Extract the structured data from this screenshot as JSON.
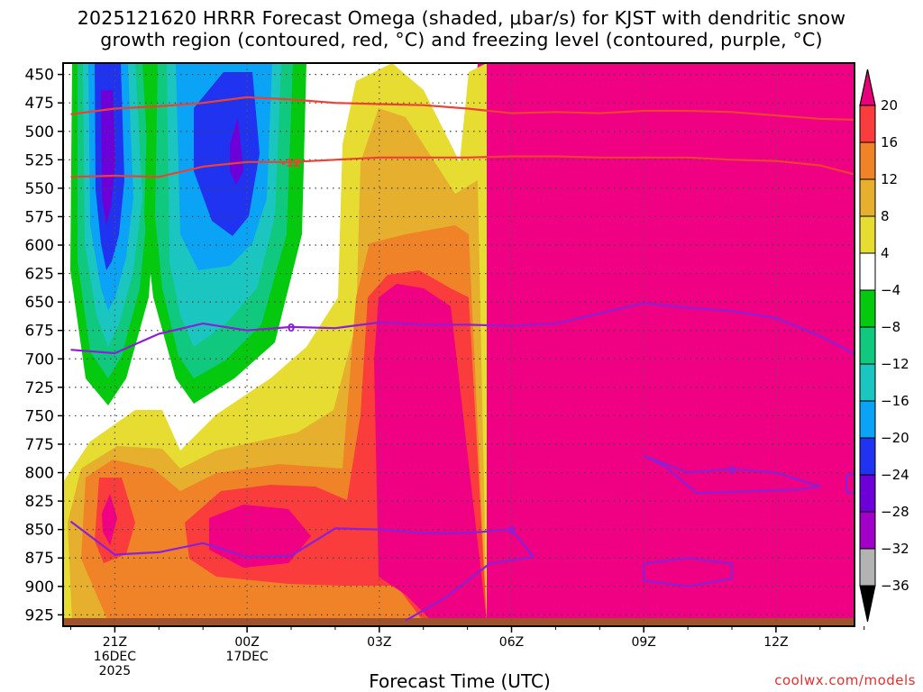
{
  "title": {
    "line1": "2025121620 HRRR Forecast Omega (shaded, μbar/s) for KJST with dendritic snow",
    "line2": "growth region (contoured, red, °C) and freezing level (contoured, purple, °C)"
  },
  "credit": "coolwx.com/models",
  "chart_data": {
    "type": "heatmap",
    "title": "2025121620 HRRR Forecast Omega (shaded, μbar/s) for KJST with dendritic snow growth region (contoured, red, °C) and freezing level (contoured, purple, °C)",
    "xlabel": "Forecast Time (UTC)",
    "ylabel": "",
    "x_hours_from_20Z": [
      0,
      1,
      2,
      3,
      4,
      5,
      6,
      7,
      8,
      9,
      10,
      11,
      12,
      13,
      14,
      15,
      16,
      17,
      18
    ],
    "x_ticks": [
      {
        "hour": 1,
        "lines": [
          "21Z",
          "16DEC",
          "2025"
        ]
      },
      {
        "hour": 4,
        "lines": [
          "00Z",
          "17DEC"
        ]
      },
      {
        "hour": 7,
        "lines": [
          "03Z"
        ]
      },
      {
        "hour": 10,
        "lines": [
          "06Z"
        ]
      },
      {
        "hour": 13,
        "lines": [
          "09Z"
        ]
      },
      {
        "hour": 16,
        "lines": [
          "12Z"
        ]
      }
    ],
    "y_pressure_levels_mb": [
      450,
      475,
      500,
      525,
      550,
      575,
      600,
      625,
      650,
      675,
      700,
      725,
      750,
      775,
      800,
      825,
      850,
      875,
      900,
      925
    ],
    "ylim": [
      440,
      935
    ],
    "omega_levels_ubar_s": [
      -36,
      -32,
      -28,
      -24,
      -20,
      -16,
      -12,
      -8,
      -4,
      4,
      8,
      12,
      16,
      20
    ],
    "omega_colors": [
      "#b3b3b3",
      "#a100c8",
      "#6d00d8",
      "#2033f0",
      "#0aa3f5",
      "#1cc6c0",
      "#10c87e",
      "#05c90e",
      "#ffffff",
      "#e6dc32",
      "#e6af2d",
      "#f08228",
      "#fa3c3c",
      "#f00082"
    ],
    "omega_shaded_regions": [
      {
        "hours": [
          0,
          2
        ],
        "pressure_mb": [
          445,
          700
        ],
        "range": "-36 to -4 (updraft, core about -28 near 21Z 475-550 mb)"
      },
      {
        "hours": [
          2,
          5.5
        ],
        "pressure_mb": [
          445,
          695
        ],
        "range": "-36 to -4 (core about -28 near 00Z 480-510 mb)"
      },
      {
        "hours": [
          0,
          6.5
        ],
        "pressure_mb": [
          690,
          935
        ],
        "range": "4 to 20"
      },
      {
        "hours": [
          6.2,
          9.5
        ],
        "pressure_mb": [
          445,
          900
        ],
        "range": "4 to 20"
      },
      {
        "hours": [
          9.5,
          18
        ],
        "pressure_mb": [
          445,
          920
        ],
        "range": "above 20"
      }
    ],
    "contours": [
      {
        "name": "dendritic -12 °C (top)",
        "color": "#ee4035",
        "label": "",
        "points": [
          [
            0,
            485
          ],
          [
            1,
            480
          ],
          [
            2,
            478
          ],
          [
            3,
            475
          ],
          [
            4,
            470
          ],
          [
            5,
            472
          ],
          [
            6,
            475
          ],
          [
            7,
            476
          ],
          [
            8,
            477
          ],
          [
            9,
            480
          ],
          [
            10,
            484
          ],
          [
            11,
            483
          ],
          [
            12,
            484
          ],
          [
            13,
            482
          ],
          [
            14,
            482
          ],
          [
            15,
            483
          ],
          [
            16,
            486
          ],
          [
            17,
            489
          ],
          [
            18,
            490
          ]
        ]
      },
      {
        "name": "dendritic -12 °C (bottom)",
        "color": "#ee4035",
        "label": "-12",
        "label_at": [
          5,
          527
        ],
        "points": [
          [
            0,
            540
          ],
          [
            1,
            539
          ],
          [
            2,
            540
          ],
          [
            3,
            531
          ],
          [
            4,
            527
          ],
          [
            5,
            527
          ],
          [
            6,
            525
          ],
          [
            7,
            523
          ],
          [
            8,
            523
          ],
          [
            9,
            523
          ],
          [
            10,
            522
          ],
          [
            11,
            522
          ],
          [
            12,
            523
          ],
          [
            13,
            523
          ],
          [
            14,
            523
          ],
          [
            15,
            525
          ],
          [
            16,
            526
          ],
          [
            17,
            530
          ],
          [
            18,
            540
          ]
        ]
      },
      {
        "name": "freezing level 0 °C (upper)",
        "color": "#8a20d8",
        "label": "0",
        "label_at": [
          5,
          672
        ],
        "points": [
          [
            0,
            692
          ],
          [
            1,
            695
          ],
          [
            2,
            678
          ],
          [
            3,
            669
          ],
          [
            4,
            675
          ],
          [
            5,
            672
          ],
          [
            6,
            673
          ],
          [
            7,
            668
          ],
          [
            8,
            670
          ],
          [
            9,
            670
          ],
          [
            10,
            671
          ],
          [
            11,
            669
          ],
          [
            12,
            660
          ],
          [
            13,
            651
          ],
          [
            14,
            655
          ],
          [
            15,
            658
          ],
          [
            16,
            664
          ],
          [
            17,
            680
          ],
          [
            18,
            700
          ]
        ]
      },
      {
        "name": "freezing level 0 °C (lower)",
        "color": "#8a20d8",
        "label": "0",
        "label_at": [
          10,
          850
        ],
        "points": [
          [
            0,
            843
          ],
          [
            1,
            872
          ],
          [
            2,
            870
          ],
          [
            3,
            862
          ],
          [
            4,
            874
          ],
          [
            5,
            873
          ],
          [
            6,
            849
          ],
          [
            7,
            850
          ],
          [
            8,
            853
          ],
          [
            9,
            853
          ],
          [
            10,
            850
          ],
          [
            10.5,
            874
          ],
          [
            9.5,
            880
          ],
          [
            8.5,
            910
          ],
          [
            7.6,
            930
          ]
        ]
      },
      {
        "name": "freezing level 0 °C (enclosed 785-818)",
        "color": "#8a20d8",
        "label": "0",
        "label_at": [
          15,
          797
        ],
        "points": [
          [
            13,
            785
          ],
          [
            14,
            800
          ],
          [
            15,
            797
          ],
          [
            16,
            800
          ],
          [
            17,
            812
          ],
          [
            16.5,
            815
          ],
          [
            14.2,
            818
          ],
          [
            13.5,
            795
          ],
          [
            13,
            785
          ]
        ]
      },
      {
        "name": "freezing level 0 °C (enclosed 875-900)",
        "color": "#8a20d8",
        "label": "",
        "points": [
          [
            13,
            880
          ],
          [
            14,
            875
          ],
          [
            15,
            880
          ],
          [
            15,
            893
          ],
          [
            14,
            900
          ],
          [
            13,
            895
          ],
          [
            13,
            880
          ]
        ]
      },
      {
        "name": "freezing level 0 °C (right edge)",
        "color": "#8a20d8",
        "label": "",
        "points": [
          [
            18,
            797
          ],
          [
            17.6,
            803
          ],
          [
            17.6,
            817
          ],
          [
            18,
            820
          ]
        ]
      }
    ],
    "colorbar_tick_labels": [
      "20",
      "16",
      "12",
      "8",
      "4",
      "−4",
      "−8",
      "−12",
      "−16",
      "−20",
      "−24",
      "−28",
      "−32",
      "−36"
    ]
  }
}
